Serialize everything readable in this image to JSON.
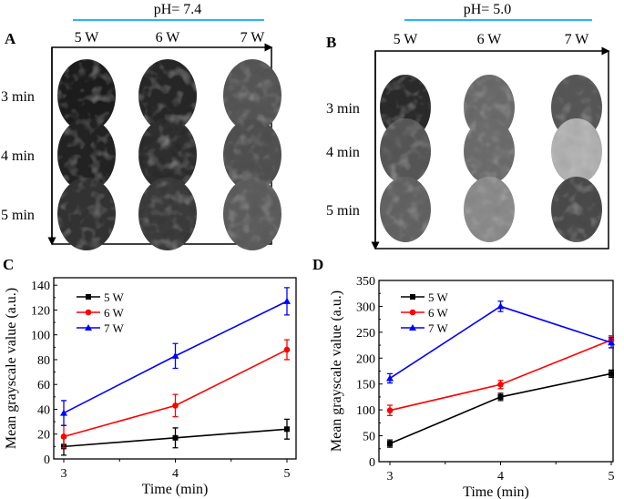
{
  "panels": {
    "A": {
      "letter": "A",
      "condition": "pH= 7.4",
      "columns": [
        "5 W",
        "6 W",
        "7 W"
      ],
      "rows": [
        "3 min",
        "4 min",
        "5 min"
      ],
      "image_gray_levels": [
        [
          "#1e1e1e",
          "#272727",
          "#555555"
        ],
        [
          "#222222",
          "#2d2d2d",
          "#505050"
        ],
        [
          "#333333",
          "#3a3a3a",
          "#5c5c5c"
        ]
      ]
    },
    "B": {
      "letter": "B",
      "condition": "pH= 5.0",
      "columns": [
        "5 W",
        "6 W",
        "7 W"
      ],
      "rows": [
        "3 min",
        "4 min",
        "5 min"
      ],
      "image_gray_levels": [
        [
          "#2a2a2a",
          "#6a6a6a",
          "#575757"
        ],
        [
          "#565656",
          "#6c6c6c",
          "#b0b0b0"
        ],
        [
          "#626262",
          "#8a8a8a",
          "#4a4a4a"
        ]
      ]
    }
  },
  "accent_line_color": "#29b6f6",
  "chart_data": [
    {
      "letter": "C",
      "type": "line",
      "xlabel": "Time (min)",
      "ylabel": "Mean grayscale value (a.u.)",
      "x": [
        3,
        4,
        5
      ],
      "xticks": [
        "3",
        "4",
        "5"
      ],
      "ylim": [
        0,
        146
      ],
      "yticks": [
        "0",
        "20",
        "40",
        "60",
        "80",
        "100",
        "120",
        "140"
      ],
      "ytick_values": [
        0,
        20,
        40,
        60,
        80,
        100,
        120,
        140
      ],
      "legend": "top-left",
      "grid": false,
      "series": [
        {
          "name": "5 W",
          "color": "#000000",
          "marker": "square",
          "values": [
            10,
            17,
            24
          ],
          "errors": [
            7,
            8,
            8
          ]
        },
        {
          "name": "6 W",
          "color": "#ff0000",
          "marker": "circle",
          "values": [
            18,
            43,
            88
          ],
          "errors": [
            9,
            9,
            8
          ]
        },
        {
          "name": "7 W",
          "color": "#0000ff",
          "marker": "triangle",
          "values": [
            37,
            83,
            127
          ],
          "errors": [
            10,
            10,
            11
          ]
        }
      ]
    },
    {
      "letter": "D",
      "type": "line",
      "xlabel": "Time (min)",
      "ylabel": "Mean grayscale value (a.u.)",
      "x": [
        3,
        4,
        5
      ],
      "xticks": [
        "3",
        "4",
        "5"
      ],
      "ylim": [
        0,
        350
      ],
      "yticks": [
        "0",
        "50",
        "100",
        "150",
        "200",
        "250",
        "300",
        "350"
      ],
      "ytick_values": [
        0,
        50,
        100,
        150,
        200,
        250,
        300,
        350
      ],
      "legend": "top-left",
      "grid": false,
      "series": [
        {
          "name": "5 W",
          "color": "#000000",
          "marker": "square",
          "values": [
            35,
            125,
            170
          ],
          "errors": [
            7,
            7,
            7
          ]
        },
        {
          "name": "6 W",
          "color": "#ff0000",
          "marker": "circle",
          "values": [
            99,
            149,
            235
          ],
          "errors": [
            10,
            8,
            8
          ]
        },
        {
          "name": "7 W",
          "color": "#0000ff",
          "marker": "triangle",
          "values": [
            161,
            300,
            230
          ],
          "errors": [
            9,
            10,
            10
          ]
        }
      ]
    }
  ]
}
